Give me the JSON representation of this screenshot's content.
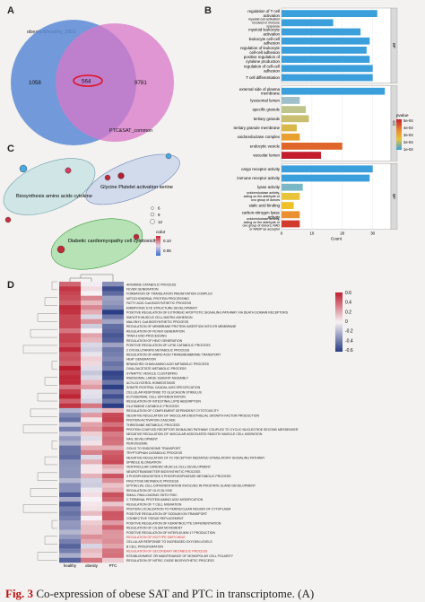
{
  "panelA": {
    "letter": "A",
    "title": "obesity&healthy_DEG",
    "left_count": "1058",
    "center_count": "564",
    "right_count": "9781",
    "right_label": "PTC&SAT_common"
  },
  "panelB": {
    "letter": "B",
    "xlabel": "Count",
    "xticks": [
      "0",
      "10",
      "20",
      "30"
    ],
    "groups": [
      "BP",
      "CC",
      "MF"
    ],
    "legend_title": "pvalue",
    "legend_ticks": [
      "5e-04",
      "4e-04",
      "3e-04",
      "2e-04",
      "1e-04"
    ],
    "bars": [
      {
        "label": "regulation of T cell activation",
        "group": "BP",
        "count": 31.5,
        "color": "#3b9fdc"
      },
      {
        "label": "myeloid cell activation involved in immune response",
        "group": "BP",
        "count": 17,
        "color": "#3b9fdc"
      },
      {
        "label": "myeloid leukocyte activation",
        "group": "BP",
        "count": 26,
        "color": "#3b9fdc"
      },
      {
        "label": "leukocyte cell-cell adhesion",
        "group": "BP",
        "count": 29,
        "color": "#3b9fdc"
      },
      {
        "label": "regulation of leukocyte cell-cell adhesion",
        "group": "BP",
        "count": 28,
        "color": "#3b9fdc"
      },
      {
        "label": "positive regulation of cytokine production",
        "group": "BP",
        "count": 29,
        "color": "#3b9fdc"
      },
      {
        "label": "regulation of cell-cell adhesion",
        "group": "BP",
        "count": 30,
        "color": "#3b9fdc"
      },
      {
        "label": "T cell differentiation",
        "group": "BP",
        "count": 30,
        "color": "#3b9fdc"
      },
      {
        "label": "external side of plasma membrane",
        "group": "CC",
        "count": 34,
        "color": "#3b9fdc"
      },
      {
        "label": "lysosomal lumen",
        "group": "CC",
        "count": 6,
        "color": "#9fc0c8"
      },
      {
        "label": "specific granule",
        "group": "CC",
        "count": 8,
        "color": "#bfc48a"
      },
      {
        "label": "tertiary granule",
        "group": "CC",
        "count": 9,
        "color": "#c8c070"
      },
      {
        "label": "tertiary granule membrane",
        "group": "CC",
        "count": 5,
        "color": "#d8b84a"
      },
      {
        "label": "oxidoreductase complex",
        "group": "CC",
        "count": 6,
        "color": "#e8a030"
      },
      {
        "label": "endocytic vesicle",
        "group": "CC",
        "count": 20,
        "color": "#e0652a"
      },
      {
        "label": "vacuolar lumen",
        "group": "CC",
        "count": 13,
        "color": "#c41e2e"
      },
      {
        "label": "cargo receptor activity",
        "group": "MF",
        "count": 30,
        "color": "#3b9fdc"
      },
      {
        "label": "immune receptor activity",
        "group": "MF",
        "count": 29,
        "color": "#3b9fdc"
      },
      {
        "label": "lyase activity",
        "group": "MF",
        "count": 7,
        "color": "#7ab8c8"
      },
      {
        "label": "oxidoreductase activity, acting on the aldehyde or oxo group of donors",
        "group": "MF",
        "count": 6,
        "color": "#e8c43a"
      },
      {
        "label": "sialic acid binding",
        "group": "MF",
        "count": 4,
        "color": "#f0c028"
      },
      {
        "label": "carbon-nitrogen lyase activity",
        "group": "MF",
        "count": 6,
        "color": "#ea9030"
      },
      {
        "label": "oxidoreductase activity, acting on the aldehyde or oxo group of donors, NAD or NADP as acceptor",
        "group": "MF",
        "count": 6,
        "color": "#d23a2c"
      }
    ]
  },
  "panelC": {
    "letter": "C",
    "clusters": [
      {
        "label": "Biosynthesis amino acids cytokine"
      },
      {
        "label": "Glycine Platelet activation serine"
      },
      {
        "label": "Diabetic cardiomyopathy cell cytotoxicity"
      }
    ],
    "size_legend": [
      "6",
      "9",
      "12"
    ],
    "color_legend_title": "color",
    "color_legend_ticks": [
      "0.10",
      "0.05"
    ]
  },
  "panelD": {
    "letter": "D",
    "columns": [
      "healthy",
      "obesity",
      "PTC"
    ],
    "legend_ticks": [
      "0.6",
      "0.4",
      "0.2",
      "0",
      "-0.2",
      "-0.4",
      "-0.6"
    ],
    "rows": [
      "ARGININE CATABOLIC PROCESS",
      "FEVER GENERATION",
      "FORMATION OF TRANSLATION PREINITIATION COMPLEX",
      "MITOCHONDRIAL PROTEIN PROCESSING",
      "FATTY ACID CoA BIOSYNTHETIC PROCESS",
      "EMBRYONIC EYE STRUCTURE DEVELOPMENT",
      "POSITIVE REGULATION OF EXTRINSIC APOPTOTIC SIGNALING PATHWAY VIA DEATH DOMAIN RECEPTORS",
      "SMOOTH MUSCLE CELL MATRIX ADHESION",
      "MALONYL CoA BIOSYNTHETIC PROCESS",
      "REGULATION OF MEMBRANE PROTEIN INSERTION INTO ER MEMBRANE",
      "REGULATION OF FEVER GENERATION",
      "TRNA 3 END PROCESSING",
      "REGULATION OF HEAT GENERATION",
      "POSITIVE REGULATION OF LIPID CATABOLIC PROCESS",
      "2 OXOGLUTARATE METABOLIC PROCESS",
      "REGULATION OF AMINO ACID TRANSMEMBRANE TRANSPORT",
      "HEAT GENERATION",
      "BRANCHED CHAIN AMINO ACID METABOLIC PROCESS",
      "OXALOACETATE METABOLIC PROCESS",
      "SYNAPTIC VESICLE CLUSTERING",
      "RIBOSOMAL LARGE SUBUNIT ASSEMBLY",
      "ACYLGLYCEROL HOMEOSTASIS",
      "SOMITE ROSTRAL CAUDAL AXIS SPECIFICATION",
      "CELLULAR RESPONSE TO GLUCAGON STIMULUS",
      "ECTODERMAL CELL DIFFERENTIATION",
      "REGULATION OF INTESTINAL LIPID ABSORPTION",
      "GLUTAMINE CATABOLIC PROCESS",
      "REGULATION OF COMPLEMENT DEPENDENT CYTOTOXICITY",
      "NEGATIVE REGULATION OF VASCULAR ENDOTHELIAL GROWTH FACTOR PRODUCTION",
      "PROTEIN ACTIVATION CASCADE",
      "THREONINE METABOLIC PROCESS",
      "PROTEIN COUPLED RECEPTOR SIGNALING PATHWAY COUPLED TO CYCLIC NUCLEOTIDE SECOND MESSENGER",
      "NEGATIVE REGULATION OF VASCULAR ASSOCIATED SMOOTH MUSCLE CELL MIGRATION",
      "NAIL DEVELOPMENT",
      "PEROXISOME",
      "GOLGI TO ENDOSOME TRANSPORT",
      "TRYPTOPHAN CATABOLIC PROCESS",
      "NEGATIVE REGULATION OF FC RECEPTOR MEDIATED STIMULATORY SIGNALING PATHWAY",
      "SPINDLE ELONGATION",
      "VENTRICULAR CARDIAC MUSCLE CELL DEVELOPMENT",
      "NEUROTRANSMITTER BIOSYNTHETIC PROCESS",
      "3 PHOSPHOINOSITIDE 5 PHOSPHOSPHATASE METABOLIC PROCESS",
      "FRUCTOSE METABOLIC PROCESS",
      "EPITHELIAL CELL DIFFERENTIATION INVOLVED IN PROSTATE GLAND DEVELOPMENT",
      "REGULATION OF GLYCOLYSIS",
      "SMALL RNA LOADING ONTO RISC",
      "C TERMINAL PROTEIN AMINO ACID MODIFICATION",
      "REGULATION OF T CELL MIGRATION",
      "PROTEIN LOCALIZATION TO PERINUCLEAR REGION OF CYTOPLASM",
      "POSITIVE REGULATION OF SODIUM ION TRANSPORT",
      "CONNECTIVE TISSUE REPLACEMENT",
      "POSITIVE REGULATION OF KERATINOCYTE DIFFERENTIATION",
      "REGULATION OF CILIUM MOVEMENT",
      "POSITIVE REGULATION OF INTERLEUKIN 17 PRODUCTION",
      "REGULATION OF ISOTYPE SWITCHING",
      "CELLULAR RESPONSE TO INCREASED OXYGEN LEVELS",
      "B CELL PROLIFERATION",
      "REGULATION OF SECONDARY METABOLIC PROCESS",
      "ESTABLISHMENT OR MAINTENANCE OF MONOPOLAR CELL POLARITY",
      "REGULATION OF NITRIC OXIDE BIOSYNTHETIC PROCESS"
    ],
    "highlight_rows": [
      54,
      57
    ],
    "highlight_color": "#d93030"
  },
  "caption": {
    "figlabel": "Fig. 3",
    "text": "Co-expression of obese SAT and PTC in transcriptome. (A)"
  }
}
